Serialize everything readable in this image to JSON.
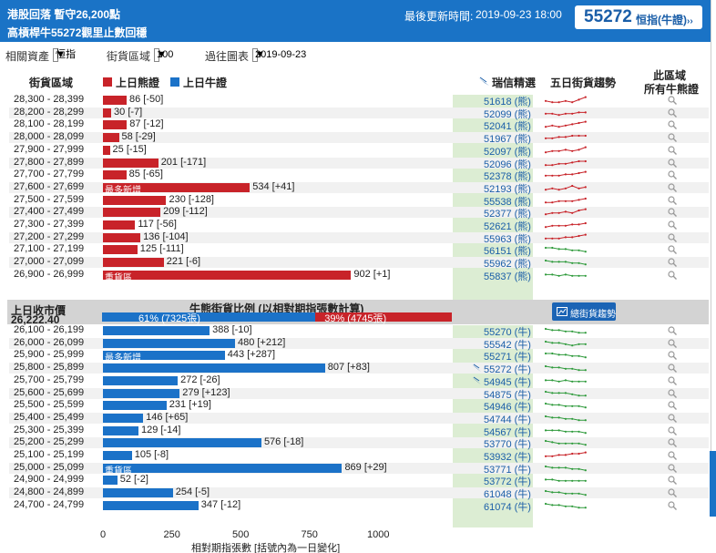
{
  "header": {
    "title_line1": "港股回落 暫守26,200點",
    "title_line2": "高槓桿牛55272觀里止數回穩",
    "update_label": "最後更新時間:",
    "update_time": "2019-09-23 18:00",
    "code": "55272",
    "code_label": "恒指(牛證)",
    "code_arrow": "››"
  },
  "filters": {
    "asset_label": "相關資產",
    "asset_value": "恒指",
    "range_label": "街貨區域",
    "range_value": "100",
    "history_label": "過往圖表",
    "history_value": "2019-09-23"
  },
  "columns": {
    "range": "街貨區域",
    "bear_legend": "上日熊證",
    "bull_legend": "上日牛證",
    "ubs_pick": "瑞信精選",
    "trend": "五日街貨趨勢",
    "all_line1": "此區域",
    "all_line2": "所有牛熊證"
  },
  "colors": {
    "bear": "#c82329",
    "bull": "#1b72c8",
    "accent": "#1a73c6"
  },
  "bear_rows": [
    {
      "range": "28,300 - 28,399",
      "value": 86,
      "change": "[-50]",
      "label": "86 [-50]",
      "code": "51618 (熊)",
      "tag": "",
      "trend": [
        3,
        2,
        2,
        3,
        2,
        4,
        6
      ]
    },
    {
      "range": "28,200 - 28,299",
      "value": 30,
      "change": "[-7]",
      "label": "30 [-7]",
      "code": "52099 (熊)",
      "tag": "",
      "trend": [
        3,
        3,
        2,
        3,
        3,
        4,
        4
      ]
    },
    {
      "range": "28,100 - 28,199",
      "value": 87,
      "change": "[-12]",
      "label": "87 [-12]",
      "code": "52041 (熊)",
      "tag": "",
      "trend": [
        2,
        3,
        2,
        3,
        4,
        5,
        6
      ]
    },
    {
      "range": "28,000 - 28,099",
      "value": 58,
      "change": "[-29]",
      "label": "58 [-29]",
      "code": "51967 (熊)",
      "tag": "",
      "trend": [
        3,
        3,
        4,
        4,
        5,
        5,
        5
      ]
    },
    {
      "range": "27,900 - 27,999",
      "value": 25,
      "change": "[-15]",
      "label": "25 [-15]",
      "code": "52097 (熊)",
      "tag": "",
      "trend": [
        2,
        3,
        3,
        4,
        3,
        4,
        6
      ]
    },
    {
      "range": "27,800 - 27,899",
      "value": 201,
      "change": "[-171]",
      "label": "201 [-171]",
      "code": "52096 (熊)",
      "tag": "",
      "trend": [
        2,
        2,
        3,
        3,
        4,
        5,
        5
      ]
    },
    {
      "range": "27,700 - 27,799",
      "value": 85,
      "change": "[-65]",
      "label": "85 [-65]",
      "code": "52378 (熊)",
      "tag": "",
      "trend": [
        3,
        3,
        3,
        4,
        4,
        5,
        6
      ]
    },
    {
      "range": "27,600 - 27,699",
      "value": 534,
      "change": "[+41]",
      "label": "534 [+41]",
      "code": "52193 (熊)",
      "tag": "最多新增",
      "trend": [
        2,
        3,
        2,
        3,
        5,
        3,
        4
      ]
    },
    {
      "range": "27,500 - 27,599",
      "value": 230,
      "change": "[-128]",
      "label": "230 [-128]",
      "code": "55538 (熊)",
      "tag": "",
      "trend": [
        2,
        2,
        3,
        3,
        3,
        4,
        5
      ]
    },
    {
      "range": "27,400 - 27,499",
      "value": 209,
      "change": "[-112]",
      "label": "209 [-112]",
      "code": "52377 (熊)",
      "tag": "",
      "trend": [
        2,
        3,
        3,
        4,
        3,
        5,
        6
      ]
    },
    {
      "range": "27,300 - 27,399",
      "value": 117,
      "change": "[-56]",
      "label": "117 [-56]",
      "code": "52621 (熊)",
      "tag": "",
      "trend": [
        2,
        3,
        3,
        3,
        4,
        4,
        5
      ]
    },
    {
      "range": "27,200 - 27,299",
      "value": 136,
      "change": "[-104]",
      "label": "136 [-104]",
      "code": "55963 (熊)",
      "tag": "",
      "trend": [
        3,
        3,
        3,
        4,
        4,
        5,
        6
      ]
    },
    {
      "range": "27,100 - 27,199",
      "value": 125,
      "change": "[-111]",
      "label": "125 [-111]",
      "code": "56151 (熊)",
      "tag": "",
      "trend": [
        5,
        5,
        4,
        4,
        3,
        3,
        2
      ]
    },
    {
      "range": "27,000 - 27,099",
      "value": 221,
      "change": "[-6]",
      "label": "221 [-6]",
      "code": "55962 (熊)",
      "tag": "",
      "trend": [
        5,
        4,
        4,
        4,
        3,
        3,
        2
      ]
    },
    {
      "range": "26,900 - 26,999",
      "value": 902,
      "change": "[+1]",
      "label": "902 [+1]",
      "code": "55837 (熊)",
      "tag": "重貨區",
      "trend": [
        4,
        4,
        3,
        4,
        3,
        3,
        3
      ]
    }
  ],
  "separator": {
    "prev_close_label": "上日收市價",
    "prev_close_value": "26,222.40",
    "ratio_title": "牛熊街貨比例 (以相對期指張數計算)",
    "bull_pct": 61,
    "bear_pct": 39,
    "bull_text": "61% (7325張)",
    "bear_text": "39% (4745張)",
    "trend_button": "總街貨趨勢"
  },
  "bull_rows": [
    {
      "range": "26,100 - 26,199",
      "value": 388,
      "change": "[-10]",
      "label": "388 [-10]",
      "code": "55270 (牛)",
      "tag": "",
      "bird": false,
      "trend": [
        5,
        4,
        4,
        3,
        3,
        2,
        2
      ]
    },
    {
      "range": "26,000 - 26,099",
      "value": 480,
      "change": "[+212]",
      "label": "480 [+212]",
      "code": "55542 (牛)",
      "tag": "",
      "bird": false,
      "trend": [
        5,
        4,
        4,
        3,
        2,
        3,
        3
      ]
    },
    {
      "range": "25,900 - 25,999",
      "value": 443,
      "change": "[+287]",
      "label": "443 [+287]",
      "code": "55271 (牛)",
      "tag": "最多新增",
      "bird": false,
      "trend": [
        5,
        5,
        4,
        4,
        3,
        3,
        2
      ]
    },
    {
      "range": "25,800 - 25,899",
      "value": 807,
      "change": "[+83]",
      "label": "807 [+83]",
      "code": "55272 (牛)",
      "tag": "",
      "bird": true,
      "trend": [
        5,
        4,
        4,
        3,
        3,
        2,
        2
      ]
    },
    {
      "range": "25,700 - 25,799",
      "value": 272,
      "change": "[-26]",
      "label": "272 [-26]",
      "code": "54945 (牛)",
      "tag": "",
      "bird": true,
      "trend": [
        4,
        4,
        3,
        4,
        3,
        3,
        3
      ]
    },
    {
      "range": "25,600 - 25,699",
      "value": 279,
      "change": "[+123]",
      "label": "279 [+123]",
      "code": "54875 (牛)",
      "tag": "",
      "bird": false,
      "trend": [
        5,
        4,
        4,
        4,
        3,
        2,
        2
      ]
    },
    {
      "range": "25,500 - 25,599",
      "value": 231,
      "change": "[+19]",
      "label": "231 [+19]",
      "code": "54946 (牛)",
      "tag": "",
      "bird": false,
      "trend": [
        5,
        4,
        4,
        3,
        3,
        3,
        2
      ]
    },
    {
      "range": "25,400 - 25,499",
      "value": 146,
      "change": "[+65]",
      "label": "146 [+65]",
      "code": "54744 (牛)",
      "tag": "",
      "bird": false,
      "trend": [
        5,
        4,
        4,
        3,
        3,
        2,
        2
      ]
    },
    {
      "range": "25,300 - 25,399",
      "value": 129,
      "change": "[-14]",
      "label": "129 [-14]",
      "code": "54567 (牛)",
      "tag": "",
      "bird": false,
      "trend": [
        4,
        4,
        4,
        3,
        3,
        3,
        2
      ]
    },
    {
      "range": "25,200 - 25,299",
      "value": 576,
      "change": "[-18]",
      "label": "576 [-18]",
      "code": "53770 (牛)",
      "tag": "",
      "bird": false,
      "trend": [
        5,
        4,
        3,
        3,
        3,
        3,
        2
      ]
    },
    {
      "range": "25,100 - 25,199",
      "value": 105,
      "change": "[-8]",
      "label": "105 [-8]",
      "code": "53932 (牛)",
      "tag": "",
      "bird": false,
      "trend": [
        3,
        3,
        4,
        4,
        5,
        5,
        6
      ],
      "trend_bear": true
    },
    {
      "range": "25,000 - 25,099",
      "value": 869,
      "change": "[+29]",
      "label": "869 [+29]",
      "code": "53771 (牛)",
      "tag": "重貨區",
      "bird": false,
      "trend": [
        5,
        4,
        4,
        4,
        3,
        3,
        2
      ]
    },
    {
      "range": "24,900 - 24,999",
      "value": 52,
      "change": "[-2]",
      "label": "52 [-2]",
      "code": "53772 (牛)",
      "tag": "",
      "bird": false,
      "trend": [
        4,
        4,
        3,
        3,
        3,
        3,
        3
      ]
    },
    {
      "range": "24,800 - 24,899",
      "value": 254,
      "change": "[-5]",
      "label": "254 [-5]",
      "code": "61048 (牛)",
      "tag": "",
      "bird": false,
      "trend": [
        5,
        4,
        4,
        3,
        3,
        3,
        2
      ]
    },
    {
      "range": "24,700 - 24,799",
      "value": 347,
      "change": "[-12]",
      "label": "347 [-12]",
      "code": "61074 (牛)",
      "tag": "",
      "bird": false,
      "trend": [
        5,
        4,
        4,
        3,
        3,
        2,
        2
      ]
    }
  ],
  "axis": {
    "ticks": [
      "0",
      "250",
      "500",
      "750",
      "1000"
    ],
    "tick_values": [
      0,
      250,
      500,
      750,
      1000
    ],
    "max": 1000,
    "title": "相對期指張數 [括號內為一日變化]"
  }
}
